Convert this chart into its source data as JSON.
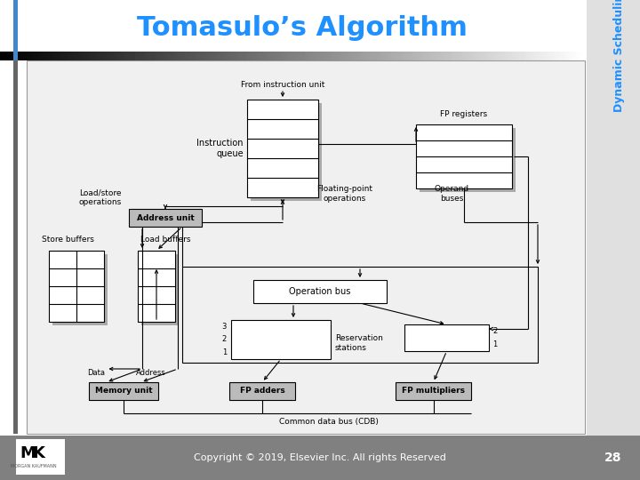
{
  "title": "Tomasulo’s Algorithm",
  "title_color": "#1E90FF",
  "title_fontsize": 22,
  "sidebar_text": "Dynamic Scheduling",
  "sidebar_color": "#1E90FF",
  "sidebar_bg": "#E8E8E8",
  "copyright_text": "Copyright © 2019, Elsevier Inc. All rights Reserved",
  "page_number": "28",
  "bg_color": "#FFFFFF",
  "footer_bg": "#808080",
  "diagram_bg": "#FFFFFF",
  "box_fill": "#FFFFFF",
  "box_edge": "#000000",
  "shaded_fill": "#B0B0B0",
  "title_bar_gradient": [
    "#888888",
    "#DDDDDD"
  ],
  "left_bar_color": "#4488CC",
  "labels": {
    "from_instruction": "From instruction unit",
    "instruction_queue": "Instruction\nqueue",
    "fp_registers": "FP registers",
    "load_store": "Load/store\noperations",
    "floating_point": "Floating-point\noperations",
    "operand_buses": "Operand\nbuses",
    "address_unit": "Address unit",
    "store_buffers": "Store buffers",
    "load_buffers": "Load buffers",
    "operation_bus": "Operation bus",
    "reservation": "Reservation\nstations",
    "data_label": "Data",
    "address_label": "Address",
    "memory_unit": "Memory unit",
    "fp_adders": "FP adders",
    "fp_multipliers": "FP multipliers",
    "cdb": "Common data bus (CDB)"
  }
}
